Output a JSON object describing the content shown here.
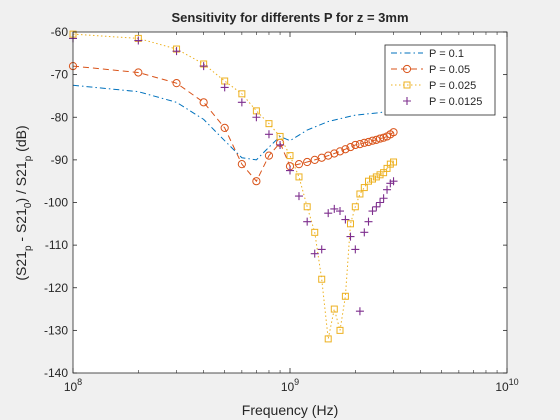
{
  "chart_data": {
    "type": "line",
    "title": "Sensitivity for differents P for z = 3mm",
    "xlabel": "Frequency (Hz)",
    "ylabel": {
      "parts": [
        "(S21",
        "p",
        " - S21",
        "0",
        ") / S21",
        "p",
        " (dB)"
      ]
    },
    "xscale": "log",
    "xlim": [
      100000000.0,
      10000000000.0
    ],
    "ylim": [
      -140,
      -60
    ],
    "grid": false,
    "legend_position": "top-right",
    "x_ticks": [
      {
        "value": 100000000.0,
        "base": "10",
        "exp": "8"
      },
      {
        "value": 1000000000.0,
        "base": "10",
        "exp": "9"
      },
      {
        "value": 10000000000.0,
        "base": "10",
        "exp": "10"
      }
    ],
    "y_ticks": [
      {
        "value": -140,
        "label": "-140"
      },
      {
        "value": -130,
        "label": "-130"
      },
      {
        "value": -120,
        "label": "-120"
      },
      {
        "value": -110,
        "label": "-110"
      },
      {
        "value": -100,
        "label": "-100"
      },
      {
        "value": -90,
        "label": "-90"
      },
      {
        "value": -80,
        "label": "-80"
      },
      {
        "value": -70,
        "label": "-70"
      },
      {
        "value": -60,
        "label": "-60"
      }
    ],
    "series": [
      {
        "name": "P = 0.1",
        "color": "#0072BD",
        "line": "dashdot",
        "marker": "none",
        "x": [
          100000000.0,
          200000000.0,
          300000000.0,
          400000000.0,
          500000000.0,
          600000000.0,
          700000000.0,
          800000000.0,
          900000000.0,
          1000000000.0,
          1200000000.0,
          1500000000.0,
          2000000000.0,
          2500000000.0,
          3000000000.0
        ],
        "y": [
          -72.5,
          -74,
          -76.5,
          -80.5,
          -85.5,
          -89.5,
          -90,
          -87,
          -84.5,
          -85.5,
          -83,
          -81,
          -79.5,
          -79,
          -78.5
        ]
      },
      {
        "name": "P = 0.05",
        "color": "#D95319",
        "line": "dashed",
        "marker": "circle",
        "x": [
          100000000.0,
          200000000.0,
          300000000.0,
          400000000.0,
          500000000.0,
          600000000.0,
          700000000.0,
          800000000.0,
          900000000.0,
          1000000000.0,
          1100000000.0,
          1200000000.0,
          1300000000.0,
          1400000000.0,
          1500000000.0,
          1600000000.0,
          1700000000.0,
          1800000000.0,
          1900000000.0,
          2000000000.0,
          2100000000.0,
          2200000000.0,
          2300000000.0,
          2400000000.0,
          2500000000.0,
          2600000000.0,
          2700000000.0,
          2800000000.0,
          2900000000.0,
          3000000000.0
        ],
        "y": [
          -68,
          -69.5,
          -72,
          -76.5,
          -82.5,
          -91,
          -95,
          -89,
          -86,
          -91.5,
          -91,
          -90.5,
          -90,
          -89.5,
          -89,
          -88.5,
          -88,
          -87.5,
          -87,
          -86.5,
          -86.3,
          -86,
          -85.8,
          -85.5,
          -85.3,
          -85,
          -84.8,
          -84.5,
          -84,
          -83.5
        ]
      },
      {
        "name": "P = 0.025",
        "color": "#EDB120",
        "line": "dotted",
        "marker": "square",
        "x": [
          100000000.0,
          200000000.0,
          300000000.0,
          400000000.0,
          500000000.0,
          600000000.0,
          700000000.0,
          800000000.0,
          900000000.0,
          1000000000.0,
          1100000000.0,
          1200000000.0,
          1300000000.0,
          1400000000.0,
          1500000000.0,
          1600000000.0,
          1700000000.0,
          1800000000.0,
          1900000000.0,
          2000000000.0,
          2100000000.0,
          2200000000.0,
          2300000000.0,
          2400000000.0,
          2500000000.0,
          2600000000.0,
          2700000000.0,
          2800000000.0,
          2900000000.0,
          3000000000.0
        ],
        "y": [
          -60.5,
          -61.5,
          -64,
          -67.5,
          -71.5,
          -74.5,
          -78.5,
          -81.5,
          -84.5,
          -89,
          -94,
          -101,
          -107,
          -118,
          -132,
          -125,
          -130,
          -122,
          -105,
          -101,
          -98,
          -96.5,
          -95,
          -94.5,
          -94,
          -93.5,
          -93,
          -92,
          -91,
          -90.5
        ]
      },
      {
        "name": "P = 0.0125",
        "color": "#7E2F8E",
        "line": "none",
        "marker": "plus",
        "x": [
          100000000.0,
          200000000.0,
          300000000.0,
          400000000.0,
          500000000.0,
          600000000.0,
          700000000.0,
          800000000.0,
          900000000.0,
          1000000000.0,
          1100000000.0,
          1200000000.0,
          1300000000.0,
          1400000000.0,
          1500000000.0,
          1600000000.0,
          1700000000.0,
          1800000000.0,
          1900000000.0,
          2000000000.0,
          2100000000.0,
          2200000000.0,
          2300000000.0,
          2400000000.0,
          2500000000.0,
          2600000000.0,
          2700000000.0,
          2800000000.0,
          2900000000.0,
          3000000000.0
        ],
        "y": [
          -61.5,
          -62,
          -64.5,
          -68,
          -73,
          -76.5,
          -80,
          -84,
          -86.5,
          -92.5,
          -98.5,
          -104.5,
          -112,
          -111,
          -102.5,
          -101.5,
          -102,
          -104,
          -108,
          -111,
          -125.5,
          -107,
          -104.5,
          -102,
          -101,
          -100,
          -99,
          -97,
          -95.5,
          -95
        ]
      }
    ]
  }
}
